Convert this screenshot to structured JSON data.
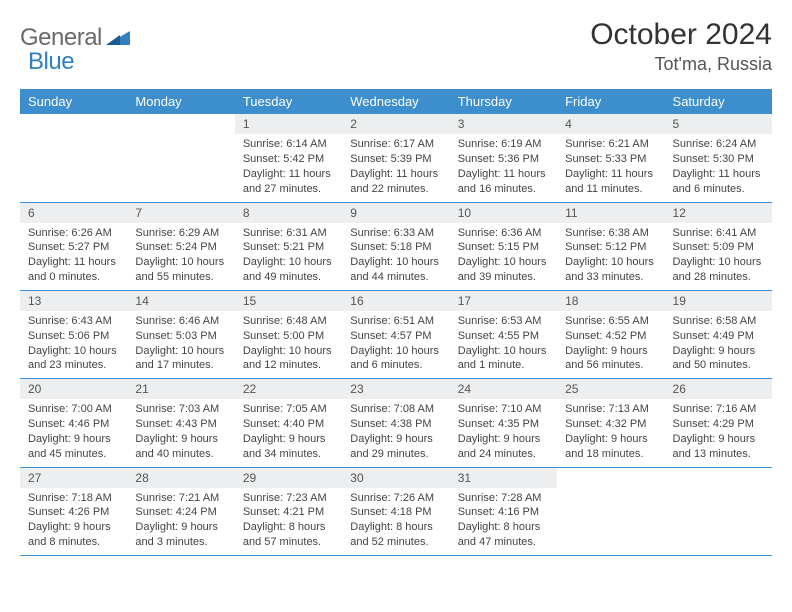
{
  "brand": {
    "part1": "General",
    "part2": "Blue"
  },
  "title": "October 2024",
  "location": "Tot'ma, Russia",
  "colors": {
    "header_bg": "#3c8ecc",
    "header_text": "#ffffff",
    "daynum_bg": "#eceef0",
    "row_border": "#3c8ecc",
    "brand_gray": "#6a6a6a",
    "brand_blue": "#2f7fc1",
    "body_text": "#444444",
    "background": "#ffffff"
  },
  "dayHeaders": [
    "Sunday",
    "Monday",
    "Tuesday",
    "Wednesday",
    "Thursday",
    "Friday",
    "Saturday"
  ],
  "weeks": [
    [
      null,
      null,
      {
        "n": "1",
        "sunrise": "6:14 AM",
        "sunset": "5:42 PM",
        "daylight": "11 hours and 27 minutes."
      },
      {
        "n": "2",
        "sunrise": "6:17 AM",
        "sunset": "5:39 PM",
        "daylight": "11 hours and 22 minutes."
      },
      {
        "n": "3",
        "sunrise": "6:19 AM",
        "sunset": "5:36 PM",
        "daylight": "11 hours and 16 minutes."
      },
      {
        "n": "4",
        "sunrise": "6:21 AM",
        "sunset": "5:33 PM",
        "daylight": "11 hours and 11 minutes."
      },
      {
        "n": "5",
        "sunrise": "6:24 AM",
        "sunset": "5:30 PM",
        "daylight": "11 hours and 6 minutes."
      }
    ],
    [
      {
        "n": "6",
        "sunrise": "6:26 AM",
        "sunset": "5:27 PM",
        "daylight": "11 hours and 0 minutes."
      },
      {
        "n": "7",
        "sunrise": "6:29 AM",
        "sunset": "5:24 PM",
        "daylight": "10 hours and 55 minutes."
      },
      {
        "n": "8",
        "sunrise": "6:31 AM",
        "sunset": "5:21 PM",
        "daylight": "10 hours and 49 minutes."
      },
      {
        "n": "9",
        "sunrise": "6:33 AM",
        "sunset": "5:18 PM",
        "daylight": "10 hours and 44 minutes."
      },
      {
        "n": "10",
        "sunrise": "6:36 AM",
        "sunset": "5:15 PM",
        "daylight": "10 hours and 39 minutes."
      },
      {
        "n": "11",
        "sunrise": "6:38 AM",
        "sunset": "5:12 PM",
        "daylight": "10 hours and 33 minutes."
      },
      {
        "n": "12",
        "sunrise": "6:41 AM",
        "sunset": "5:09 PM",
        "daylight": "10 hours and 28 minutes."
      }
    ],
    [
      {
        "n": "13",
        "sunrise": "6:43 AM",
        "sunset": "5:06 PM",
        "daylight": "10 hours and 23 minutes."
      },
      {
        "n": "14",
        "sunrise": "6:46 AM",
        "sunset": "5:03 PM",
        "daylight": "10 hours and 17 minutes."
      },
      {
        "n": "15",
        "sunrise": "6:48 AM",
        "sunset": "5:00 PM",
        "daylight": "10 hours and 12 minutes."
      },
      {
        "n": "16",
        "sunrise": "6:51 AM",
        "sunset": "4:57 PM",
        "daylight": "10 hours and 6 minutes."
      },
      {
        "n": "17",
        "sunrise": "6:53 AM",
        "sunset": "4:55 PM",
        "daylight": "10 hours and 1 minute."
      },
      {
        "n": "18",
        "sunrise": "6:55 AM",
        "sunset": "4:52 PM",
        "daylight": "9 hours and 56 minutes."
      },
      {
        "n": "19",
        "sunrise": "6:58 AM",
        "sunset": "4:49 PM",
        "daylight": "9 hours and 50 minutes."
      }
    ],
    [
      {
        "n": "20",
        "sunrise": "7:00 AM",
        "sunset": "4:46 PM",
        "daylight": "9 hours and 45 minutes."
      },
      {
        "n": "21",
        "sunrise": "7:03 AM",
        "sunset": "4:43 PM",
        "daylight": "9 hours and 40 minutes."
      },
      {
        "n": "22",
        "sunrise": "7:05 AM",
        "sunset": "4:40 PM",
        "daylight": "9 hours and 34 minutes."
      },
      {
        "n": "23",
        "sunrise": "7:08 AM",
        "sunset": "4:38 PM",
        "daylight": "9 hours and 29 minutes."
      },
      {
        "n": "24",
        "sunrise": "7:10 AM",
        "sunset": "4:35 PM",
        "daylight": "9 hours and 24 minutes."
      },
      {
        "n": "25",
        "sunrise": "7:13 AM",
        "sunset": "4:32 PM",
        "daylight": "9 hours and 18 minutes."
      },
      {
        "n": "26",
        "sunrise": "7:16 AM",
        "sunset": "4:29 PM",
        "daylight": "9 hours and 13 minutes."
      }
    ],
    [
      {
        "n": "27",
        "sunrise": "7:18 AM",
        "sunset": "4:26 PM",
        "daylight": "9 hours and 8 minutes."
      },
      {
        "n": "28",
        "sunrise": "7:21 AM",
        "sunset": "4:24 PM",
        "daylight": "9 hours and 3 minutes."
      },
      {
        "n": "29",
        "sunrise": "7:23 AM",
        "sunset": "4:21 PM",
        "daylight": "8 hours and 57 minutes."
      },
      {
        "n": "30",
        "sunrise": "7:26 AM",
        "sunset": "4:18 PM",
        "daylight": "8 hours and 52 minutes."
      },
      {
        "n": "31",
        "sunrise": "7:28 AM",
        "sunset": "4:16 PM",
        "daylight": "8 hours and 47 minutes."
      },
      null,
      null
    ]
  ]
}
